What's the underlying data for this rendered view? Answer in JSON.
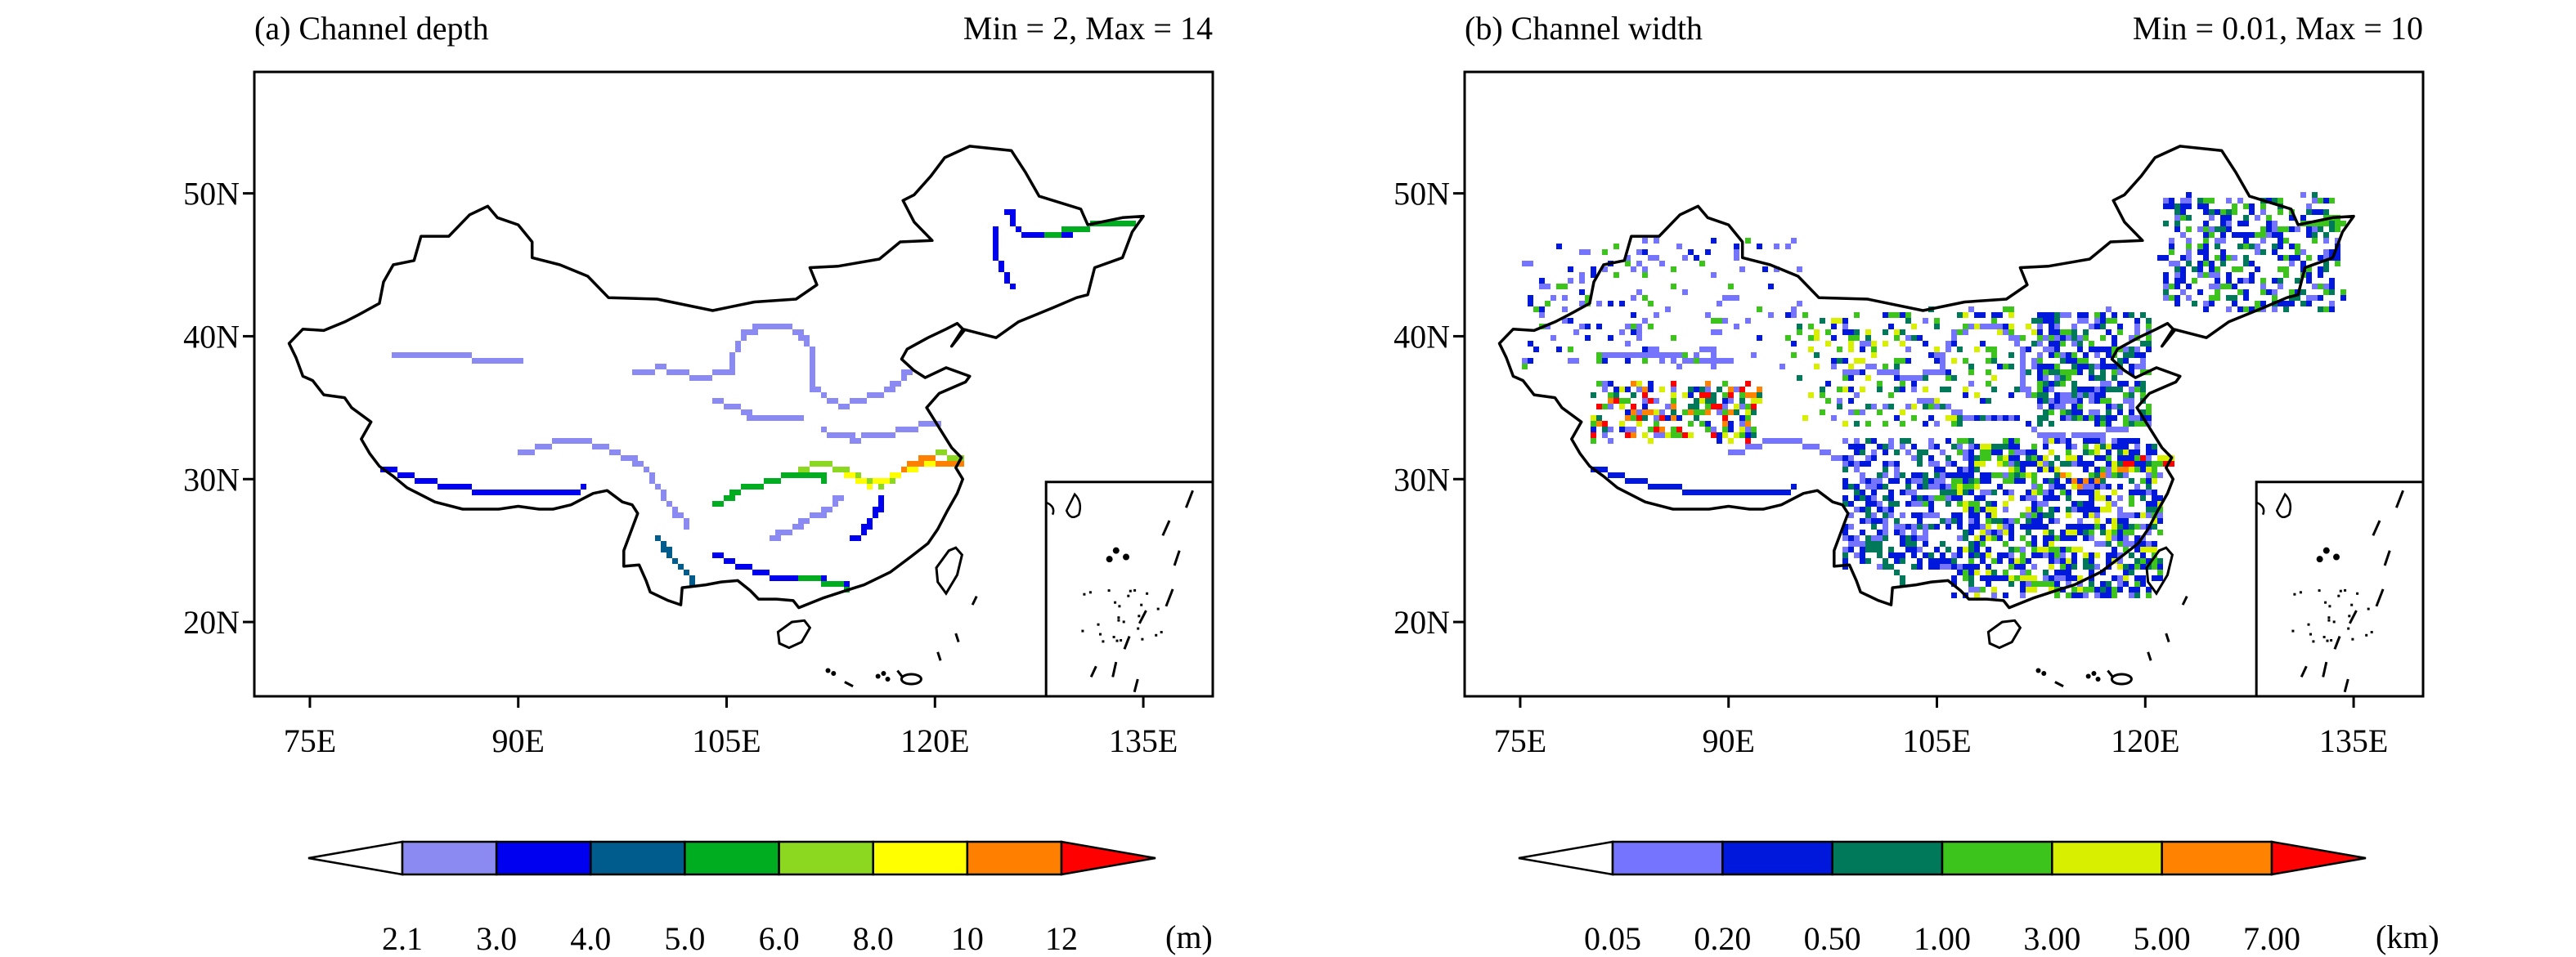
{
  "panels": [
    {
      "id": "a",
      "title": "(a) Channel depth",
      "range": "Min = 2, Max = 14",
      "x_ticks": [
        "75E",
        "90E",
        "105E",
        "120E",
        "135E"
      ],
      "y_ticks": [
        "50N",
        "40N",
        "30N",
        "20N"
      ],
      "colorbar": {
        "labels": [
          "2.1",
          "3.0",
          "4.0",
          "5.0",
          "6.0",
          "8.0",
          "10",
          "12"
        ],
        "unit": "(m)",
        "colors": [
          "#ffffff",
          "#8a8af2",
          "#0000f0",
          "#005c8c",
          "#00ac20",
          "#8cd820",
          "#ffff00",
          "#ff7f00",
          "#ff0000"
        ]
      }
    },
    {
      "id": "b",
      "title": "(b) Channel width",
      "range": "Min = 0.01, Max = 10",
      "x_ticks": [
        "75E",
        "90E",
        "105E",
        "120E",
        "135E"
      ],
      "y_ticks": [
        "50N",
        "40N",
        "30N",
        "20N"
      ],
      "colorbar": {
        "labels": [
          "0.05",
          "0.20",
          "0.50",
          "1.00",
          "3.00",
          "5.00",
          "7.00"
        ],
        "unit": "(km)",
        "colors": [
          "#ffffff",
          "#7474ff",
          "#0018dc",
          "#00785a",
          "#3cc41c",
          "#d8f000",
          "#ff8200",
          "#ff0000"
        ]
      }
    }
  ]
}
